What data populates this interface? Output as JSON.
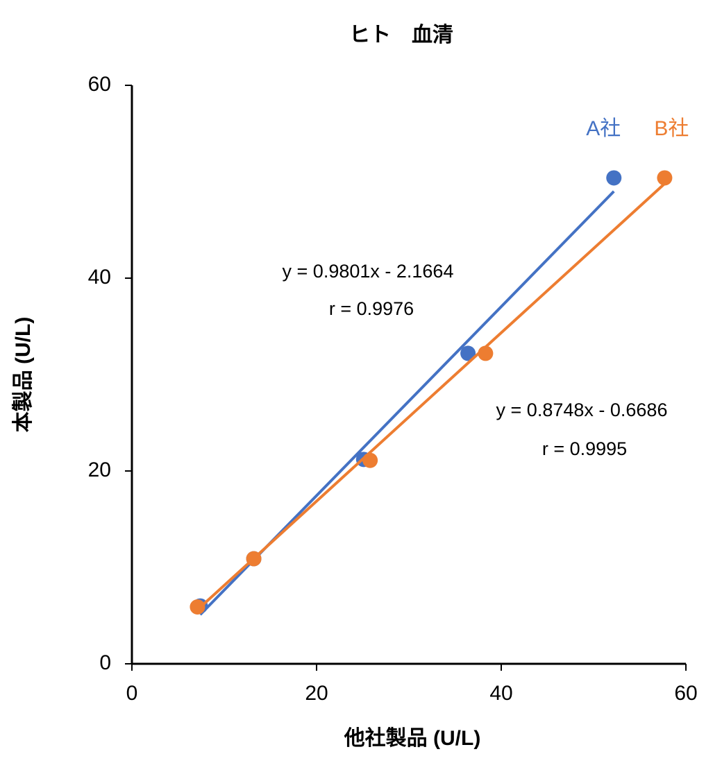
{
  "chart_data": {
    "type": "scatter",
    "title": "ヒト　血清",
    "xlabel": "他社製品 (U/L)",
    "ylabel": "本製品 (U/L)",
    "xlim": [
      0,
      60
    ],
    "ylim": [
      0,
      60
    ],
    "xticks": [
      0,
      20,
      40,
      60
    ],
    "yticks": [
      0,
      20,
      40,
      60
    ],
    "series": [
      {
        "name": "A社",
        "color": "#4472c4",
        "x": [
          7.4,
          13.2,
          25.1,
          36.4,
          52.2
        ],
        "values": [
          6.0,
          10.9,
          21.2,
          32.2,
          50.4
        ],
        "trendline": {
          "x": [
            7.4,
            52.2
          ],
          "values": [
            5.1,
            49.0
          ]
        }
      },
      {
        "name": "B社",
        "color": "#ed7d31",
        "x": [
          7.1,
          13.2,
          25.8,
          38.3,
          57.7
        ],
        "values": [
          5.9,
          10.9,
          21.1,
          32.2,
          50.4
        ],
        "trendline": {
          "x": [
            7.1,
            57.7
          ],
          "values": [
            5.6,
            49.8
          ]
        }
      }
    ],
    "annotations": [
      "y = 0.9801x - 2.1664",
      "r = 0.9976",
      "y = 0.8748x - 0.6686",
      "r = 0.9995"
    ]
  }
}
